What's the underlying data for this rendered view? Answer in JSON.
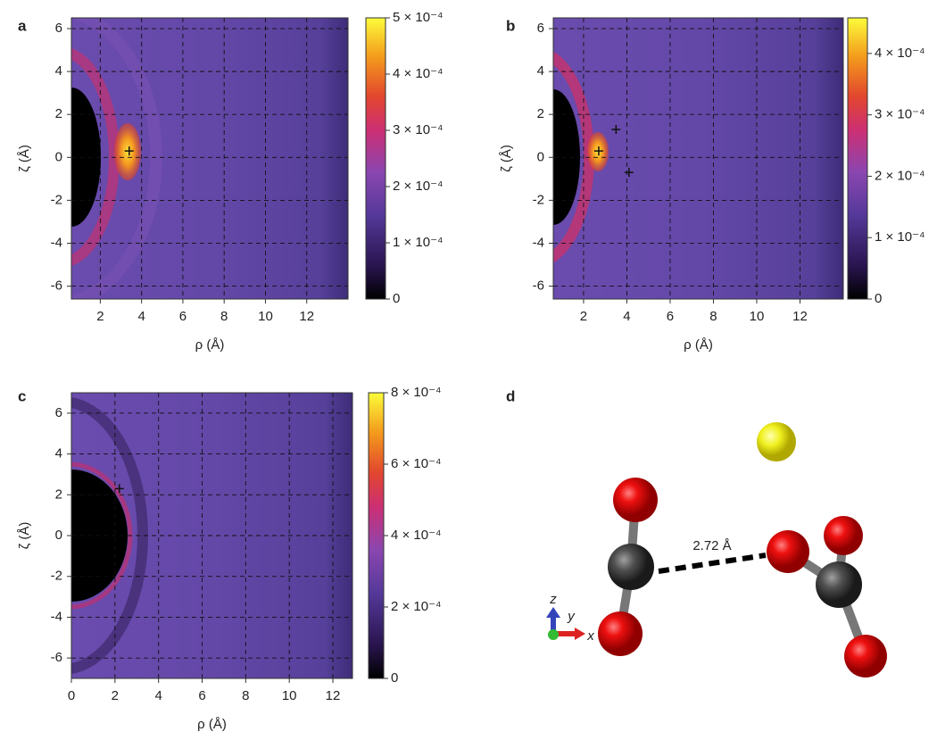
{
  "chart_data": [
    {
      "type": "heatmap",
      "panel_label": "a",
      "xlabel": "ρ (Å)",
      "ylabel": "ζ (Å)",
      "xlim": [
        0.6,
        14
      ],
      "xticks": [
        2,
        4,
        6,
        8,
        10,
        12
      ],
      "ylim": [
        -6.6,
        6.5
      ],
      "yticks": [
        -6,
        -4,
        -2,
        0,
        2,
        4,
        6
      ],
      "grid": true,
      "colorbar": {
        "lim": [
          0,
          0.0005
        ],
        "ticks": [
          0,
          {
            "value": 0.0001,
            "label": "1 × 10⁻⁴"
          },
          {
            "value": 0.0002,
            "label": "2 × 10⁻⁴"
          },
          {
            "value": 0.0003,
            "label": "3 × 10⁻⁴"
          },
          {
            "value": 0.0004,
            "label": "4 × 10⁻⁴"
          },
          {
            "value": 0.0005,
            "label": "5 × 10⁻⁴"
          }
        ]
      },
      "markers": {
        "x": [
          3.4
        ],
        "y": [
          0.3
        ]
      }
    },
    {
      "type": "heatmap",
      "panel_label": "b",
      "xlabel": "ρ (Å)",
      "ylabel": "ζ (Å)",
      "xlim": [
        0.6,
        14
      ],
      "xticks": [
        2,
        4,
        6,
        8,
        10,
        12
      ],
      "ylim": [
        -6.6,
        6.5
      ],
      "yticks": [
        -6,
        -4,
        -2,
        0,
        2,
        4,
        6
      ],
      "grid": true,
      "colorbar": {
        "lim": [
          0,
          0.000458
        ],
        "ticks": [
          0,
          {
            "value": 0.0001,
            "label": "1 × 10⁻⁴"
          },
          {
            "value": 0.0002,
            "label": "2 × 10⁻⁴"
          },
          {
            "value": 0.0003,
            "label": "3 × 10⁻⁴"
          },
          {
            "value": 0.0004,
            "label": "4 × 10⁻⁴"
          }
        ]
      },
      "markers": {
        "x": [
          2.7,
          3.5,
          4.1
        ],
        "y": [
          0.3,
          1.3,
          -0.7
        ]
      }
    },
    {
      "type": "heatmap",
      "panel_label": "c",
      "xlabel": "ρ (Å)",
      "ylabel": "ζ (Å)",
      "xlim": [
        0,
        12.9
      ],
      "xticks": [
        0,
        2,
        4,
        6,
        8,
        10,
        12
      ],
      "ylim": [
        -7,
        7
      ],
      "yticks": [
        -6,
        -4,
        -2,
        0,
        2,
        4,
        6
      ],
      "grid": true,
      "colorbar": {
        "lim": [
          0,
          0.0008
        ],
        "ticks": [
          0,
          {
            "value": 0.0002,
            "label": "2 × 10⁻⁴"
          },
          {
            "value": 0.0004,
            "label": "4 × 10⁻⁴"
          },
          {
            "value": 0.0006,
            "label": "6 × 10⁻⁴"
          },
          {
            "value": 0.0008,
            "label": "8 × 10⁻⁴"
          }
        ]
      },
      "markers": {
        "x": [
          2.2
        ],
        "y": [
          2.3
        ]
      }
    }
  ],
  "panel_d": {
    "panel_label": "d",
    "distance_label": "2.72 Å",
    "axis_labels": [
      "z",
      "y",
      "x"
    ]
  }
}
